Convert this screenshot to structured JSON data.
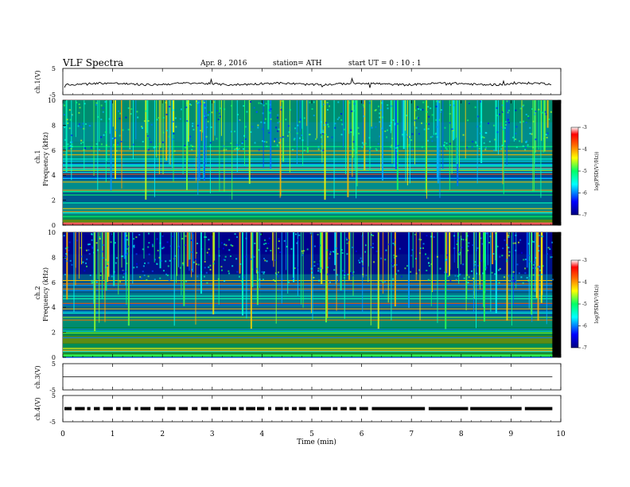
{
  "header": {
    "title": "VLF Spectra",
    "date": "Apr. 8 , 2016",
    "station": "station= ATH",
    "start_ut": "start  UT =   0 : 10 : 1"
  },
  "x_axis": {
    "label": "Time (min)",
    "ticks": [
      0,
      1,
      2,
      3,
      4,
      5,
      6,
      7,
      8,
      9,
      10
    ],
    "range": [
      0,
      10
    ],
    "data_end_min": 9.83
  },
  "colorbar": {
    "label": "log(PSD(V²/Hz))",
    "ticks": [
      -3,
      -4,
      -5,
      -6,
      -7
    ],
    "range": [
      -7,
      -3
    ]
  },
  "chart_data": [
    {
      "type": "line",
      "panel": "ch1_waveform",
      "ylabel": "ch.1(V)",
      "ylim": [
        -5,
        5
      ],
      "ytick_labels": [
        "5",
        "-5"
      ],
      "baseline_v": -0.9
    },
    {
      "type": "heatmap",
      "panel": "ch1_spectrogram",
      "ylabel_channel": "ch.1",
      "ylabel": "Frequency (kHz)",
      "ylim": [
        0,
        10
      ],
      "ytick_labels": [
        "0",
        "2",
        "4",
        "6",
        "8",
        "10"
      ],
      "z_label": "log(PSD(V²/Hz))",
      "z_range": [
        -7,
        -3
      ],
      "bands": [
        {
          "f": 0.1,
          "level": -3.2
        },
        {
          "f": 0.3,
          "level": -4.6
        },
        {
          "f": 0.6,
          "level": -5.2
        },
        {
          "f": 1.0,
          "level": -5.6
        },
        {
          "f": 1.5,
          "level": -5.7
        },
        {
          "f": 2.2,
          "level": -5.9
        },
        {
          "f": 3.0,
          "level": -5.6
        },
        {
          "f": 4.2,
          "level": -6.0
        },
        {
          "f": 5.8,
          "level": -5.5
        },
        {
          "f": 7.5,
          "level": -5.6
        },
        {
          "f": 9.0,
          "level": -5.4
        }
      ]
    },
    {
      "type": "heatmap",
      "panel": "ch2_spectrogram",
      "ylabel_channel": "ch.2",
      "ylabel": "Frequency (kHz)",
      "ylim": [
        0,
        10
      ],
      "ytick_labels": [
        "0",
        "2",
        "4",
        "6",
        "8",
        "10"
      ],
      "z_label": "log(PSD(V²/Hz))",
      "z_range": [
        -7,
        -3
      ],
      "bands": [
        {
          "f": 0.3,
          "level": -4.9
        },
        {
          "f": 0.8,
          "level": -5.2
        },
        {
          "f": 1.4,
          "level": -4.6
        },
        {
          "f": 2.0,
          "level": -5.1
        },
        {
          "f": 2.8,
          "level": -5.4
        },
        {
          "f": 3.5,
          "level": -5.9
        },
        {
          "f": 4.5,
          "level": -5.7
        },
        {
          "f": 5.8,
          "level": -5.9
        },
        {
          "f": 7.5,
          "level": -6.3
        },
        {
          "f": 9.0,
          "level": -6.4
        }
      ]
    },
    {
      "type": "line",
      "panel": "ch3_waveform",
      "ylabel": "ch.3(V)",
      "ylim": [
        -5,
        5
      ],
      "ytick_labels": [
        "5",
        "-5"
      ],
      "baseline_v": 0.0
    },
    {
      "type": "line",
      "panel": "ch4_waveform",
      "ylabel": "ch.4(V)",
      "ylim": [
        -5,
        5
      ],
      "ytick_labels": [
        "5",
        "-5"
      ],
      "baseline_v": 0.0
    }
  ]
}
